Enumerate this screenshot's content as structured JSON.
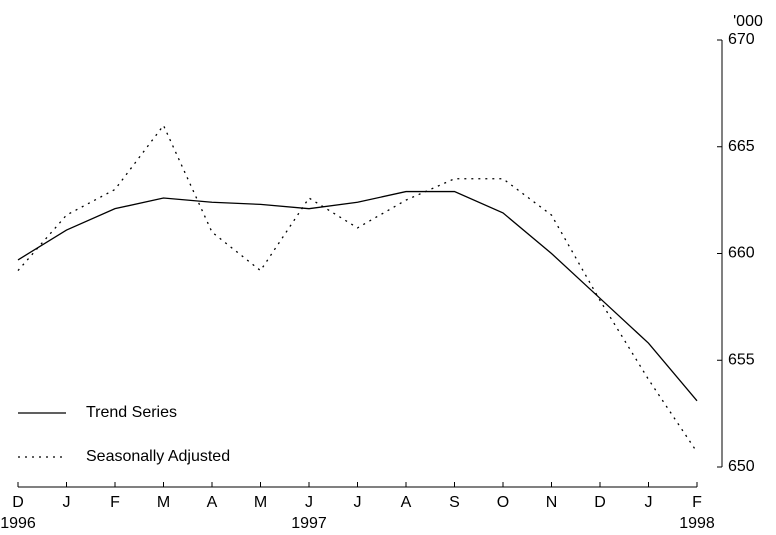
{
  "chart_data": {
    "type": "line",
    "y_unit": "'000",
    "categories": [
      "D",
      "J",
      "F",
      "M",
      "A",
      "M",
      "J",
      "J",
      "A",
      "S",
      "O",
      "N",
      "D",
      "J",
      "F"
    ],
    "year_labels": [
      "1996",
      null,
      null,
      null,
      null,
      null,
      "1997",
      null,
      null,
      null,
      null,
      null,
      null,
      null,
      "1998"
    ],
    "series": [
      {
        "name": "Trend Series",
        "color": "#000000",
        "dash": "solid",
        "values": [
          659.7,
          661.1,
          662.1,
          662.6,
          662.4,
          662.3,
          662.1,
          662.4,
          662.9,
          662.9,
          661.9,
          660.0,
          657.9,
          655.8,
          653.1
        ]
      },
      {
        "name": "Seasonally Adjusted",
        "color": "#000000",
        "dash": "dotted",
        "values": [
          659.2,
          661.8,
          663.0,
          666.0,
          661.0,
          659.2,
          662.6,
          661.2,
          662.5,
          663.5,
          663.5,
          661.8,
          657.8,
          654.1,
          650.7
        ]
      }
    ],
    "ylim": [
      650,
      670
    ],
    "yticks": [
      650,
      655,
      660,
      665,
      670
    ],
    "y_axis_side": "right",
    "grid": false,
    "legend": "lower left"
  }
}
